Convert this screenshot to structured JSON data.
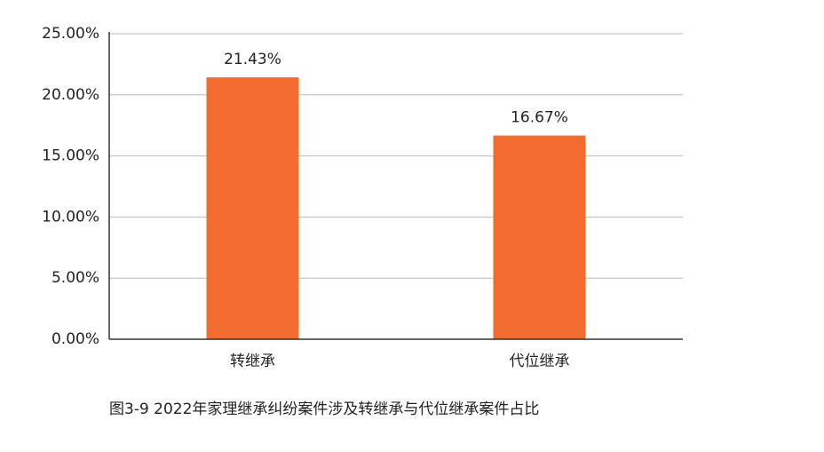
{
  "chart_data": {
    "type": "bar",
    "title": "图3-9  2022年家理继承纠纷案件涉及转继承与代位继承案件占比",
    "categories": [
      "转继承",
      "代位继承"
    ],
    "values": [
      21.43,
      16.67
    ],
    "value_labels": [
      "21.43%",
      "16.67%"
    ],
    "color": "#f26b2f",
    "ylim": [
      0,
      25
    ],
    "yticks": [
      {
        "value": 0,
        "label": "0.00%"
      },
      {
        "value": 5,
        "label": "5.00%"
      },
      {
        "value": 10,
        "label": "10.00%"
      },
      {
        "value": 15,
        "label": "15.00%"
      },
      {
        "value": 20,
        "label": "20.00%"
      },
      {
        "value": 25,
        "label": "25.00%"
      }
    ],
    "grid": true
  }
}
